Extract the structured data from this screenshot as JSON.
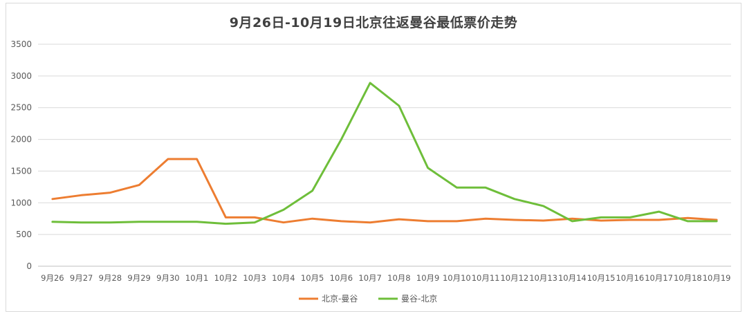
{
  "chart_data": {
    "type": "line",
    "title": "9月26日-10月19日北京往返曼谷最低票价走势",
    "xlabel": "",
    "ylabel": "",
    "ylim": [
      0,
      3500
    ],
    "yticks": [
      0,
      500,
      1000,
      1500,
      2000,
      2500,
      3000,
      3500
    ],
    "grid": true,
    "legend_position": "bottom",
    "categories": [
      "9月26",
      "9月27",
      "9月28",
      "9月29",
      "9月30",
      "10月1",
      "10月2",
      "10月3",
      "10月4",
      "10月5",
      "10月6",
      "10月7",
      "10月8",
      "10月9",
      "10月10",
      "10月11",
      "10月12",
      "10月13",
      "10月14",
      "10月15",
      "10月16",
      "10月17",
      "10月18",
      "10月19"
    ],
    "series": [
      {
        "name": "北京-曼谷",
        "color": "#ED7D31",
        "values": [
          1060,
          1120,
          1160,
          1280,
          1690,
          1690,
          770,
          770,
          690,
          750,
          710,
          690,
          740,
          710,
          710,
          750,
          730,
          720,
          750,
          720,
          730,
          730,
          760,
          730
        ]
      },
      {
        "name": "曼谷-北京",
        "color": "#6EBE3A",
        "values": [
          700,
          690,
          690,
          700,
          700,
          700,
          670,
          690,
          890,
          1190,
          2000,
          2890,
          2530,
          1550,
          1240,
          1240,
          1060,
          950,
          710,
          770,
          770,
          860,
          710,
          710
        ]
      }
    ]
  }
}
